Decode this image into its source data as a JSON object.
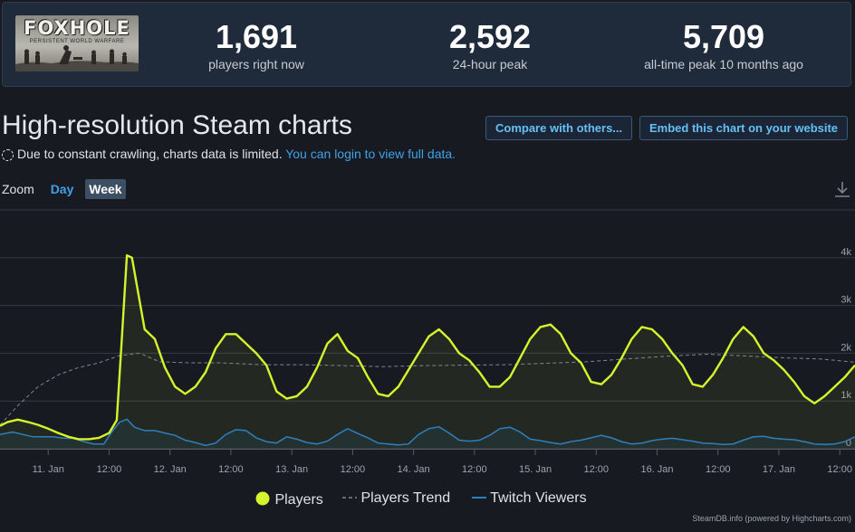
{
  "header": {
    "logo": {
      "title": "FOXHOLE",
      "subtitle": "PERSISTENT WORLD WARFARE"
    },
    "stats": [
      {
        "value": "1,691",
        "label": "players right now"
      },
      {
        "value": "2,592",
        "label": "24-hour peak"
      },
      {
        "value": "5,709",
        "label": "all-time peak 10 months ago"
      }
    ]
  },
  "page": {
    "title": "High-resolution Steam charts",
    "compare_label": "Compare with others...",
    "embed_label": "Embed this chart on your website",
    "notice_text": "Due to constant crawling, charts data is limited.",
    "notice_link": "You can login to view full data.",
    "zoom_label": "Zoom",
    "zoom_day": "Day",
    "zoom_week": "Week",
    "credit": "SteamDB.info (powered by Highcharts.com)"
  },
  "chart_data": {
    "type": "line",
    "x_unit": "hours",
    "x_range_hours": [
      -9.5,
      159
    ],
    "x_ticks": [
      {
        "label": "11. Jan",
        "hours": 0
      },
      {
        "label": "12:00",
        "hours": 12
      },
      {
        "label": "12. Jan",
        "hours": 24
      },
      {
        "label": "12:00",
        "hours": 36
      },
      {
        "label": "13. Jan",
        "hours": 48
      },
      {
        "label": "12:00",
        "hours": 60
      },
      {
        "label": "14. Jan",
        "hours": 72
      },
      {
        "label": "12:00",
        "hours": 84
      },
      {
        "label": "15. Jan",
        "hours": 96
      },
      {
        "label": "12:00",
        "hours": 108
      },
      {
        "label": "16. Jan",
        "hours": 120
      },
      {
        "label": "12:00",
        "hours": 132
      },
      {
        "label": "17. Jan",
        "hours": 144
      },
      {
        "label": "12:00",
        "hours": 156
      }
    ],
    "y_ticks": [
      {
        "label": "0",
        "value": 0
      },
      {
        "label": "1k",
        "value": 1000
      },
      {
        "label": "2k",
        "value": 2000
      },
      {
        "label": "3k",
        "value": 3000
      },
      {
        "label": "4k",
        "value": 4000
      }
    ],
    "ylim": [
      0,
      5000
    ],
    "grid": true,
    "legend_position": "bottom-center",
    "series": [
      {
        "name": "Players",
        "color": "#d5f42c",
        "x": [
          -9.5,
          -8,
          -6,
          -4,
          -2,
          0,
          2,
          4,
          6,
          8,
          10,
          12,
          13.5,
          14.5,
          15.5,
          16.5,
          17.5,
          19,
          21,
          23,
          25,
          27,
          29,
          31,
          33,
          35,
          37,
          39,
          41,
          43,
          45,
          47,
          49,
          51,
          53,
          55,
          57,
          59,
          61,
          63,
          65,
          67,
          69,
          71,
          73,
          75,
          77,
          79,
          81,
          83,
          85,
          87,
          89,
          91,
          93,
          95,
          97,
          99,
          101,
          103,
          105,
          107,
          109,
          111,
          113,
          115,
          117,
          119,
          121,
          123,
          125,
          127,
          129,
          131,
          133,
          135,
          137,
          139,
          141,
          143,
          145,
          147,
          149,
          151,
          153,
          155,
          157,
          159
        ],
        "y": [
          480,
          560,
          610,
          560,
          500,
          420,
          330,
          250,
          200,
          200,
          230,
          330,
          600,
          2300,
          4050,
          4000,
          3400,
          2500,
          2300,
          1700,
          1300,
          1150,
          1300,
          1600,
          2100,
          2400,
          2400,
          2200,
          2000,
          1750,
          1200,
          1050,
          1100,
          1300,
          1700,
          2200,
          2400,
          2050,
          1900,
          1500,
          1150,
          1100,
          1300,
          1650,
          2000,
          2350,
          2500,
          2300,
          2000,
          1850,
          1600,
          1300,
          1300,
          1500,
          1900,
          2300,
          2550,
          2600,
          2400,
          2000,
          1800,
          1400,
          1350,
          1550,
          1900,
          2300,
          2550,
          2500,
          2300,
          2000,
          1750,
          1350,
          1300,
          1550,
          1900,
          2300,
          2550,
          2350,
          2000,
          1850,
          1650,
          1400,
          1100,
          950,
          1100,
          1300,
          1500,
          1750
        ]
      },
      {
        "name": "Players Trend",
        "color": "#7d8792",
        "x": [
          -9.5,
          -6,
          -2,
          2,
          6,
          10,
          14,
          18,
          22,
          28,
          34,
          42,
          50,
          58,
          66,
          74,
          82,
          90,
          98,
          106,
          114,
          122,
          130,
          138,
          146,
          152,
          156,
          159
        ],
        "y": [
          500,
          900,
          1300,
          1550,
          1700,
          1800,
          1950,
          2000,
          1820,
          1800,
          1800,
          1760,
          1760,
          1740,
          1720,
          1740,
          1750,
          1760,
          1790,
          1820,
          1880,
          1940,
          1980,
          1940,
          1900,
          1880,
          1840,
          1810
        ]
      },
      {
        "name": "Twitch Viewers",
        "color": "#2e7fbe",
        "x": [
          -9.5,
          -7,
          -5,
          -3,
          -1,
          1,
          3,
          5,
          7,
          9,
          11,
          12.5,
          14,
          15.5,
          17,
          19,
          21,
          23,
          25,
          27,
          29,
          31,
          33,
          35,
          37,
          39,
          41,
          43,
          45,
          47,
          49,
          51,
          53,
          55,
          57,
          59,
          61,
          63,
          65,
          67,
          69,
          71,
          73,
          75,
          77,
          79,
          81,
          83,
          85,
          87,
          89,
          91,
          93,
          95,
          97,
          99,
          101,
          103,
          105,
          107,
          109,
          111,
          113,
          115,
          117,
          119,
          121,
          123,
          125,
          127,
          129,
          131,
          133,
          135,
          137,
          139,
          141,
          143,
          145,
          147,
          149,
          151,
          153,
          155,
          157,
          159
        ],
        "y": [
          300,
          350,
          300,
          250,
          250,
          250,
          220,
          220,
          150,
          100,
          100,
          350,
          550,
          620,
          450,
          380,
          380,
          330,
          280,
          180,
          130,
          70,
          120,
          300,
          400,
          380,
          230,
          150,
          120,
          250,
          200,
          130,
          100,
          160,
          300,
          420,
          320,
          230,
          120,
          100,
          80,
          100,
          300,
          420,
          460,
          330,
          180,
          160,
          180,
          280,
          420,
          450,
          350,
          200,
          170,
          130,
          100,
          150,
          180,
          230,
          280,
          230,
          150,
          100,
          120,
          170,
          200,
          220,
          190,
          160,
          120,
          110,
          90,
          100,
          180,
          250,
          260,
          220,
          200,
          190,
          150,
          100,
          90,
          100,
          150,
          250
        ]
      }
    ]
  }
}
